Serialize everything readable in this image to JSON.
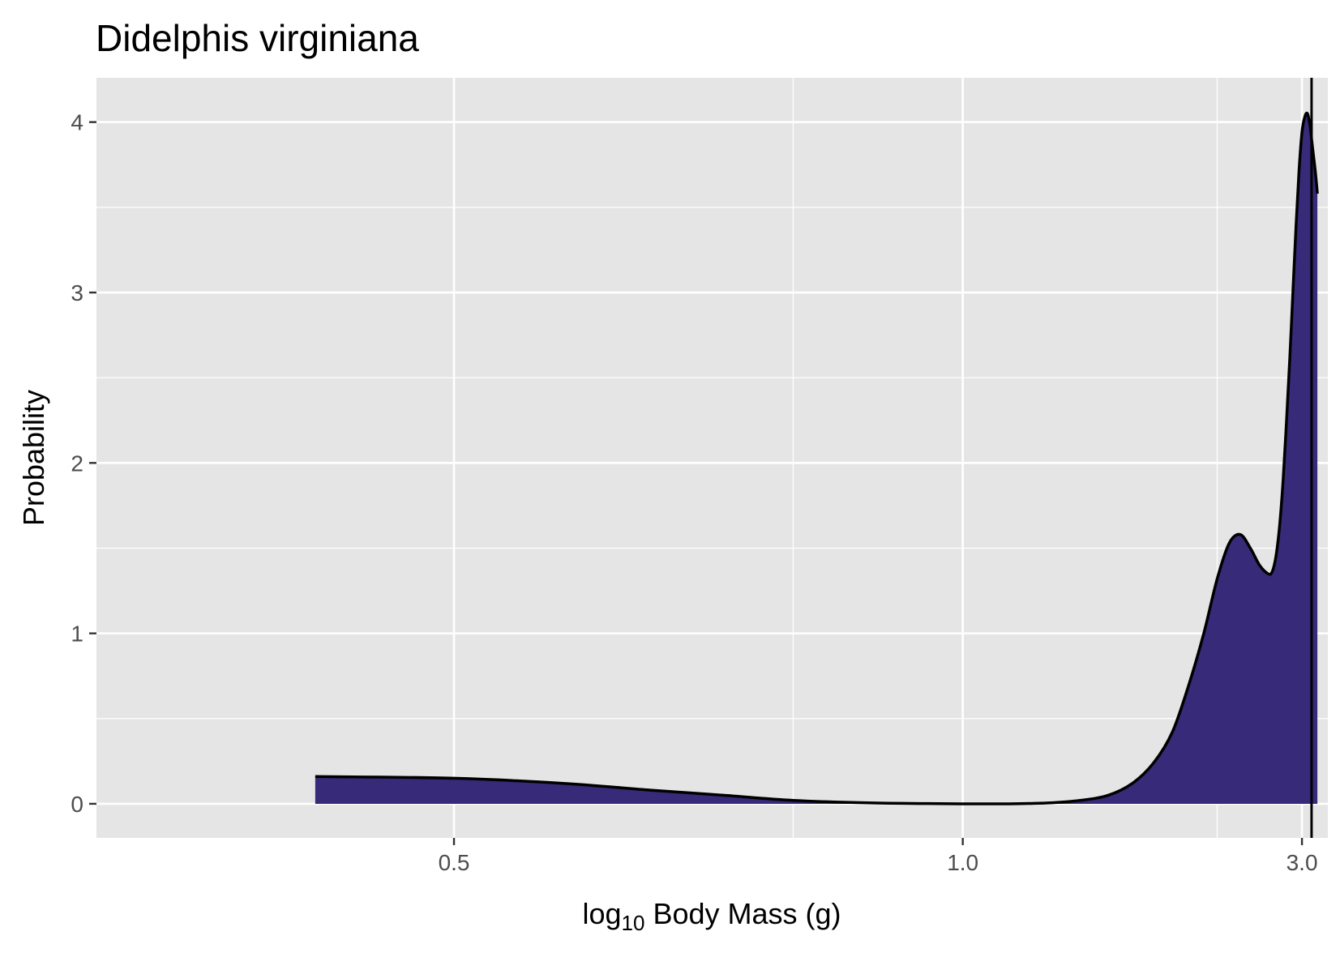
{
  "chart_data": {
    "type": "area",
    "title": "Didelphis virginiana",
    "xlabel": {
      "prefix": "log",
      "subscript": "10",
      "suffix": " Body Mass (g)"
    },
    "ylabel": "Probability",
    "xlim": [
      0.37,
      3.54
    ],
    "ylim": [
      -0.2,
      4.26
    ],
    "x_ticks": [
      {
        "value": 0.5,
        "label": "0.5"
      },
      {
        "value": 1.0,
        "label": "1.0"
      },
      {
        "value": 3.0,
        "label": "3.0"
      }
    ],
    "x_minor_grid": [
      0.75,
      2.0
    ],
    "y_ticks": [
      {
        "value": 0,
        "label": "0"
      },
      {
        "value": 1,
        "label": "1"
      },
      {
        "value": 2,
        "label": "2"
      },
      {
        "value": 3,
        "label": "3"
      },
      {
        "value": 4,
        "label": "4"
      }
    ],
    "y_minor_grid": [
      0.5,
      1.5,
      2.5,
      3.5
    ],
    "grid": true,
    "fill_color": "#372A78",
    "line_color": "#000000",
    "panel_color": "#E5E5E5",
    "vline_x": 3.18,
    "series": [
      {
        "x": [
          0.44,
          0.5,
          0.56,
          0.62,
          0.68,
          0.75,
          0.85,
          1.0,
          1.1,
          1.2,
          1.3,
          1.4,
          1.5,
          1.6,
          1.7,
          1.8,
          1.9,
          2.0,
          2.1,
          2.2,
          2.3,
          2.4,
          2.5,
          2.55,
          2.6,
          2.65,
          2.7,
          2.75,
          2.8,
          2.85,
          2.9,
          2.95,
          3.0,
          3.05,
          3.1,
          3.15,
          3.18,
          3.22,
          3.26,
          3.3
        ],
        "y": [
          0.16,
          0.15,
          0.12,
          0.08,
          0.05,
          0.02,
          0.005,
          0.0,
          0.0,
          0.005,
          0.02,
          0.05,
          0.12,
          0.24,
          0.42,
          0.7,
          1.0,
          1.32,
          1.53,
          1.58,
          1.5,
          1.4,
          1.35,
          1.36,
          1.45,
          1.63,
          1.9,
          2.25,
          2.62,
          3.02,
          3.4,
          3.72,
          3.94,
          4.03,
          4.05,
          3.98,
          3.9,
          3.8,
          3.7,
          3.58
        ]
      }
    ]
  }
}
